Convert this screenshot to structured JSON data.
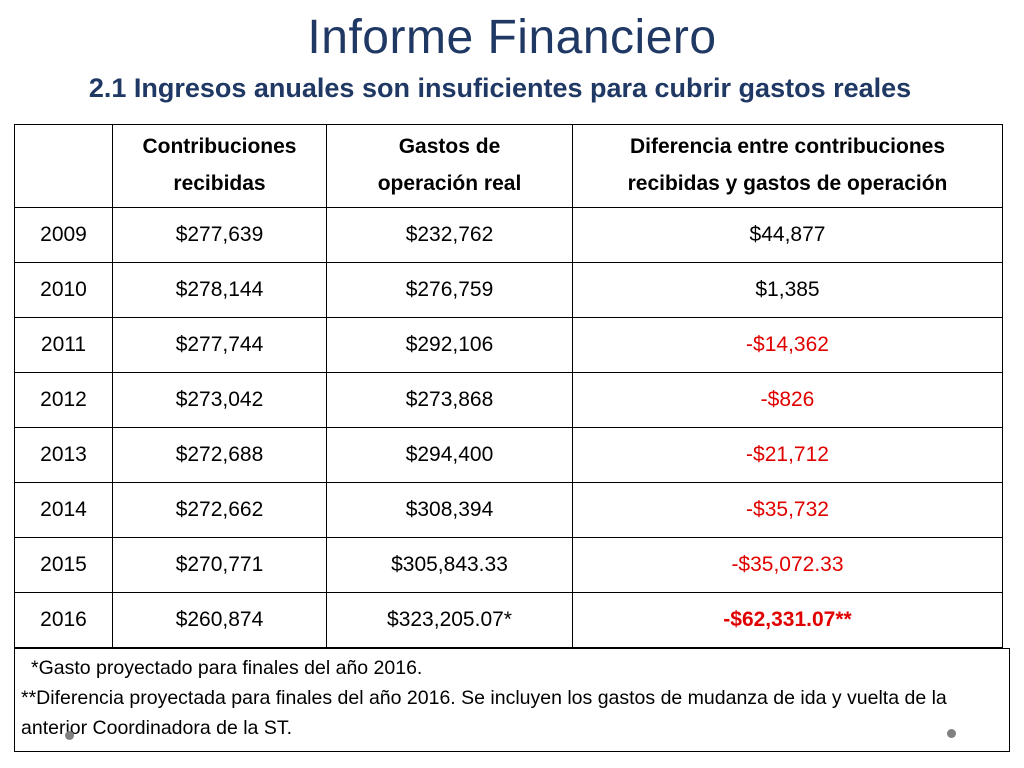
{
  "title": "Informe Financiero",
  "subtitle": "2.1 Ingresos anuales son insuficientes para cubrir gastos reales",
  "table": {
    "headers": {
      "col0": "",
      "col1_line1": "Contribuciones",
      "col1_line2": "recibidas",
      "col2_line1": "Gastos de",
      "col2_line2": "operación real",
      "col3_line1": "Diferencia entre contribuciones",
      "col3_line2": "recibidas y gastos de operación"
    },
    "rows": [
      {
        "year": "2009",
        "contrib": "$277,639",
        "gastos": "$232,762",
        "diff": "$44,877"
      },
      {
        "year": "2010",
        "contrib": "$278,144",
        "gastos": "$276,759",
        "diff": "$1,385"
      },
      {
        "year": "2011",
        "contrib": "$277,744",
        "gastos": "$292,106",
        "diff": "-$14,362"
      },
      {
        "year": "2012",
        "contrib": "$273,042",
        "gastos": "$273,868",
        "diff": "-$826"
      },
      {
        "year": "2013",
        "contrib": "$272,688",
        "gastos": "$294,400",
        "diff": "-$21,712"
      },
      {
        "year": "2014",
        "contrib": "$272,662",
        "gastos": "$308,394",
        "diff": "-$35,732"
      },
      {
        "year": "2015",
        "contrib": "$270,771",
        "gastos": "$305,843.33",
        "diff": "-$35,072.33"
      },
      {
        "year": "2016",
        "contrib": "$260,874",
        "gastos": "$323,205.07*",
        "diff": "-$62,331.07**"
      }
    ]
  },
  "notes": {
    "note1": "*Gasto proyectado para finales del año 2016.",
    "note2": "**Diferencia proyectada para finales del año 2016. Se incluyen los gastos de mudanza de ida y vuelta de la anterior Coordinadora de la ST."
  },
  "colors": {
    "title": "#1f3864",
    "negative": "#e00000"
  }
}
